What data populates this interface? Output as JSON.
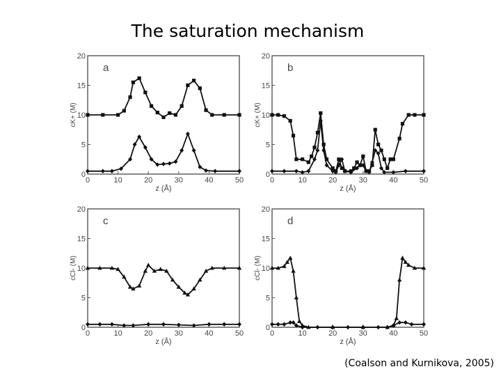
{
  "title": "The saturation mechanism",
  "citation": "(Coalson and Kurnikova, 2005)",
  "chart_data": [
    {
      "type": "line",
      "panel_label": "a",
      "xlabel": "z (Å)",
      "ylabel": "cK+ (M)",
      "xlim": [
        0,
        50
      ],
      "ylim": [
        0,
        20
      ],
      "xticks": [
        0,
        10,
        20,
        30,
        40,
        50
      ],
      "yticks": [
        0,
        5,
        10,
        15,
        20
      ],
      "series": [
        {
          "marker": "square",
          "points": [
            [
              0,
              10
            ],
            [
              5,
              10
            ],
            [
              10,
              10
            ],
            [
              12,
              10.7
            ],
            [
              14,
              13
            ],
            [
              15,
              15.5
            ],
            [
              17,
              16.2
            ],
            [
              19,
              13.8
            ],
            [
              21,
              11.5
            ],
            [
              23,
              10.4
            ],
            [
              25,
              9.6
            ],
            [
              27,
              10.3
            ],
            [
              29,
              10
            ],
            [
              31,
              11.5
            ],
            [
              33,
              15
            ],
            [
              35,
              15.8
            ],
            [
              37,
              14.5
            ],
            [
              39,
              10.8
            ],
            [
              41,
              10
            ],
            [
              45,
              10
            ],
            [
              50,
              10
            ]
          ]
        },
        {
          "marker": "diamond",
          "points": [
            [
              0,
              0.5
            ],
            [
              5,
              0.5
            ],
            [
              8,
              0.5
            ],
            [
              11,
              0.9
            ],
            [
              14,
              2.5
            ],
            [
              15.5,
              5
            ],
            [
              17,
              6.3
            ],
            [
              19,
              4.5
            ],
            [
              21,
              2.5
            ],
            [
              23,
              1.6
            ],
            [
              25,
              1.7
            ],
            [
              27,
              1.8
            ],
            [
              29,
              2.1
            ],
            [
              31,
              4
            ],
            [
              33,
              6.8
            ],
            [
              35,
              4
            ],
            [
              37,
              1.2
            ],
            [
              39,
              0.6
            ],
            [
              42,
              0.5
            ],
            [
              50,
              0.5
            ]
          ]
        }
      ]
    },
    {
      "type": "line",
      "panel_label": "b",
      "xlabel": "z (Å)",
      "ylabel": "cK+ (M)",
      "xlim": [
        0,
        50
      ],
      "ylim": [
        0,
        20
      ],
      "xticks": [
        0,
        10,
        20,
        30,
        40,
        50
      ],
      "yticks": [
        0,
        5,
        10,
        15,
        20
      ],
      "series": [
        {
          "marker": "square",
          "points": [
            [
              0,
              10
            ],
            [
              2,
              10
            ],
            [
              4,
              9.8
            ],
            [
              6,
              9
            ],
            [
              7,
              6.5
            ],
            [
              8,
              2.5
            ],
            [
              10,
              2.5
            ],
            [
              12,
              2
            ],
            [
              13,
              3
            ],
            [
              14,
              4.5
            ],
            [
              15,
              7
            ],
            [
              16,
              10.3
            ],
            [
              17,
              5
            ],
            [
              18,
              2.5
            ],
            [
              20,
              1
            ],
            [
              21,
              0.5
            ],
            [
              22,
              2.5
            ],
            [
              23,
              1
            ],
            [
              24,
              0.5
            ],
            [
              26,
              0.5
            ],
            [
              27,
              1
            ],
            [
              28,
              2
            ],
            [
              29,
              1.5
            ],
            [
              30,
              3
            ],
            [
              31,
              0.5
            ],
            [
              32,
              0.5
            ],
            [
              33,
              1.5
            ],
            [
              34,
              7.5
            ],
            [
              35,
              5
            ],
            [
              36,
              4
            ],
            [
              37,
              2.5
            ],
            [
              38,
              1
            ],
            [
              39,
              2.5
            ],
            [
              40,
              2.5
            ],
            [
              42,
              6
            ],
            [
              43,
              8.5
            ],
            [
              45,
              10
            ],
            [
              47,
              10
            ],
            [
              50,
              10
            ]
          ]
        },
        {
          "marker": "diamond",
          "points": [
            [
              0,
              0.5
            ],
            [
              4,
              0.5
            ],
            [
              8,
              0.5
            ],
            [
              10,
              0.3
            ],
            [
              12,
              0.5
            ],
            [
              14,
              2.5
            ],
            [
              15,
              4
            ],
            [
              16,
              9
            ],
            [
              17,
              4
            ],
            [
              18,
              1.5
            ],
            [
              20,
              0.5
            ],
            [
              21,
              0.3
            ],
            [
              22,
              1.5
            ],
            [
              23,
              2.5
            ],
            [
              24,
              0.5
            ],
            [
              26,
              0.3
            ],
            [
              28,
              1
            ],
            [
              29,
              1.5
            ],
            [
              30,
              1.5
            ],
            [
              31,
              0.5
            ],
            [
              32,
              0.3
            ],
            [
              33,
              2
            ],
            [
              34,
              4
            ],
            [
              35,
              3.5
            ],
            [
              36,
              1
            ],
            [
              37,
              0.3
            ],
            [
              40,
              0.3
            ],
            [
              44,
              0.5
            ],
            [
              50,
              0.5
            ]
          ]
        }
      ]
    },
    {
      "type": "line",
      "panel_label": "c",
      "xlabel": "z (Å)",
      "ylabel": "cCl- (M)",
      "xlim": [
        0,
        50
      ],
      "ylim": [
        0,
        20
      ],
      "xticks": [
        0,
        10,
        20,
        30,
        40,
        50
      ],
      "yticks": [
        0,
        5,
        10,
        15,
        20
      ],
      "series": [
        {
          "marker": "triangle",
          "points": [
            [
              0,
              10
            ],
            [
              4,
              10
            ],
            [
              8,
              10
            ],
            [
              10,
              9.8
            ],
            [
              12,
              8.5
            ],
            [
              14,
              6.8
            ],
            [
              15,
              6.5
            ],
            [
              17,
              7
            ],
            [
              19,
              9.5
            ],
            [
              20,
              10.5
            ],
            [
              22,
              9.5
            ],
            [
              24,
              9.8
            ],
            [
              26,
              9.5
            ],
            [
              28,
              8
            ],
            [
              30,
              6.8
            ],
            [
              32,
              5.8
            ],
            [
              33,
              5.5
            ],
            [
              35,
              6.5
            ],
            [
              37,
              8
            ],
            [
              39,
              9.5
            ],
            [
              41,
              10
            ],
            [
              45,
              10
            ],
            [
              50,
              10
            ]
          ]
        },
        {
          "marker": "diamond",
          "points": [
            [
              0,
              0.5
            ],
            [
              4,
              0.5
            ],
            [
              8,
              0.5
            ],
            [
              12,
              0.3
            ],
            [
              15,
              0.3
            ],
            [
              20,
              0.5
            ],
            [
              25,
              0.5
            ],
            [
              30,
              0.4
            ],
            [
              35,
              0.3
            ],
            [
              40,
              0.5
            ],
            [
              45,
              0.5
            ],
            [
              50,
              0.5
            ]
          ]
        }
      ]
    },
    {
      "type": "line",
      "panel_label": "d",
      "xlabel": "z (Å)",
      "ylabel": "cCl- (M)",
      "xlim": [
        0,
        50
      ],
      "ylim": [
        0,
        20
      ],
      "xticks": [
        0,
        10,
        20,
        30,
        40,
        50
      ],
      "yticks": [
        0,
        5,
        10,
        15,
        20
      ],
      "series": [
        {
          "marker": "triangle",
          "points": [
            [
              0,
              10
            ],
            [
              2,
              10
            ],
            [
              4,
              10.3
            ],
            [
              5,
              11
            ],
            [
              6,
              11.7
            ],
            [
              7,
              9.5
            ],
            [
              8,
              5
            ],
            [
              9,
              1
            ],
            [
              10,
              0.3
            ],
            [
              12,
              0
            ],
            [
              20,
              0
            ],
            [
              30,
              0
            ],
            [
              38,
              0
            ],
            [
              40,
              0.3
            ],
            [
              41,
              1.5
            ],
            [
              42,
              8
            ],
            [
              43,
              11.7
            ],
            [
              44,
              11
            ],
            [
              45,
              10.5
            ],
            [
              47,
              10
            ],
            [
              50,
              10
            ]
          ]
        },
        {
          "marker": "diamond",
          "points": [
            [
              0,
              0.5
            ],
            [
              2,
              0.5
            ],
            [
              4,
              0.5
            ],
            [
              6,
              0.8
            ],
            [
              7,
              0.8
            ],
            [
              8,
              0.3
            ],
            [
              10,
              0
            ],
            [
              15,
              0
            ],
            [
              20,
              0
            ],
            [
              25,
              0
            ],
            [
              30,
              0
            ],
            [
              35,
              0
            ],
            [
              38,
              0
            ],
            [
              40,
              0.3
            ],
            [
              42,
              0.8
            ],
            [
              44,
              0.8
            ],
            [
              46,
              0.5
            ],
            [
              50,
              0.5
            ]
          ]
        }
      ]
    }
  ]
}
